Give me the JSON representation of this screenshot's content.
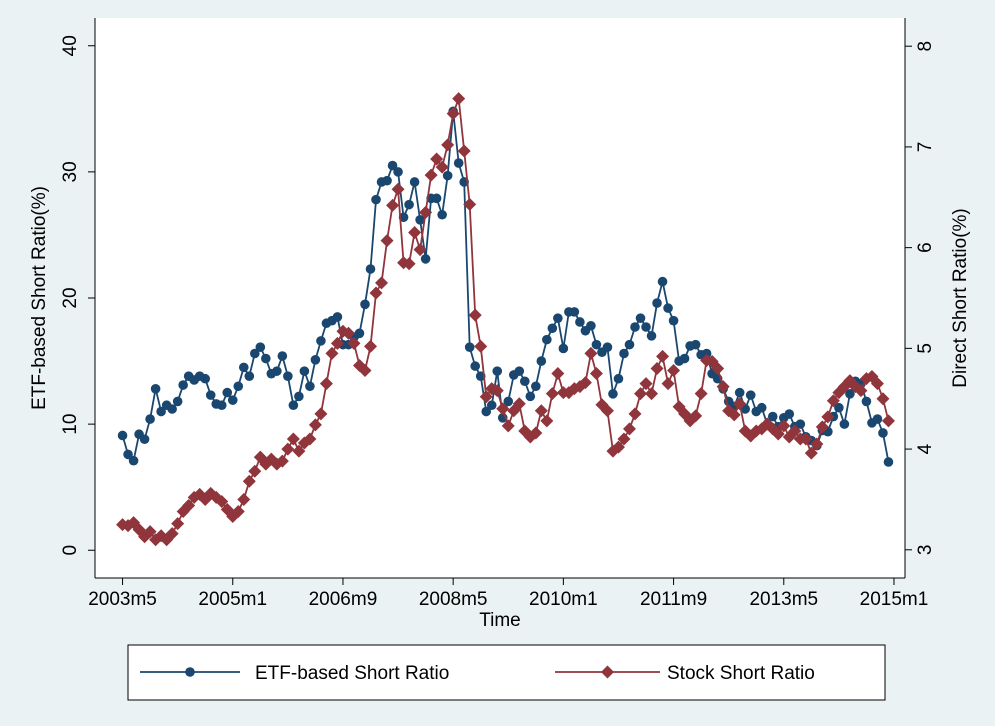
{
  "chart_data": {
    "type": "line",
    "xlabel": "Time",
    "ylabel": "ETF-based Short Ratio(%)",
    "y2label": "Direct Short Ratio(%)",
    "x": [
      "2003m5",
      "2003m6",
      "2003m7",
      "2003m8",
      "2003m9",
      "2003m10",
      "2003m11",
      "2003m12",
      "2004m1",
      "2004m2",
      "2004m3",
      "2004m4",
      "2004m5",
      "2004m6",
      "2004m7",
      "2004m8",
      "2004m9",
      "2004m10",
      "2004m11",
      "2004m12",
      "2005m1",
      "2005m2",
      "2005m3",
      "2005m4",
      "2005m5",
      "2005m6",
      "2005m7",
      "2005m8",
      "2005m9",
      "2005m10",
      "2005m11",
      "2005m12",
      "2006m1",
      "2006m2",
      "2006m3",
      "2006m4",
      "2006m5",
      "2006m6",
      "2006m7",
      "2006m8",
      "2006m9",
      "2006m10",
      "2006m11",
      "2006m12",
      "2007m1",
      "2007m2",
      "2007m3",
      "2007m4",
      "2007m5",
      "2007m6",
      "2007m7",
      "2007m8",
      "2007m9",
      "2007m10",
      "2007m11",
      "2007m12",
      "2008m1",
      "2008m2",
      "2008m3",
      "2008m4",
      "2008m5",
      "2008m6",
      "2008m7",
      "2008m8",
      "2008m9",
      "2008m10",
      "2008m11",
      "2008m12",
      "2009m1",
      "2009m2",
      "2009m3",
      "2009m4",
      "2009m5",
      "2009m6",
      "2009m7",
      "2009m8",
      "2009m9",
      "2009m10",
      "2009m11",
      "2009m12",
      "2010m1",
      "2010m2",
      "2010m3",
      "2010m4",
      "2010m5",
      "2010m6",
      "2010m7",
      "2010m8",
      "2010m9",
      "2010m10",
      "2010m11",
      "2010m12",
      "2011m1",
      "2011m2",
      "2011m3",
      "2011m4",
      "2011m5",
      "2011m6",
      "2011m7",
      "2011m8",
      "2011m9",
      "2011m10",
      "2011m11",
      "2011m12",
      "2012m1",
      "2012m2",
      "2012m3",
      "2012m4",
      "2012m5",
      "2012m6",
      "2012m7",
      "2012m8",
      "2012m9",
      "2012m10",
      "2012m11",
      "2012m12",
      "2013m1",
      "2013m2",
      "2013m3",
      "2013m4",
      "2013m5",
      "2013m6",
      "2013m7",
      "2013m8",
      "2013m9",
      "2013m10",
      "2013m11",
      "2013m12",
      "2014m1",
      "2014m2",
      "2014m3",
      "2014m4",
      "2014m5",
      "2014m6",
      "2014m7",
      "2014m8",
      "2014m9",
      "2014m10",
      "2014m11",
      "2014m12"
    ],
    "series": [
      {
        "name": "ETF-based Short Ratio",
        "color": "#1a476f",
        "marker": "circle",
        "values": [
          9.1,
          7.6,
          7.1,
          9.2,
          8.8,
          10.4,
          12.8,
          11.0,
          11.5,
          11.2,
          11.8,
          13.1,
          13.8,
          13.5,
          13.8,
          13.6,
          12.3,
          11.6,
          11.5,
          12.5,
          11.9,
          13.0,
          14.5,
          13.8,
          15.6,
          16.1,
          15.2,
          14.0,
          14.2,
          15.4,
          13.8,
          11.5,
          12.2,
          14.2,
          13.0,
          15.1,
          16.6,
          18.0,
          18.2,
          18.5,
          16.3,
          16.3,
          16.9,
          17.2,
          19.5,
          22.3,
          27.8,
          29.2,
          29.3,
          30.5,
          30.0,
          26.4,
          27.4,
          29.2,
          26.2,
          23.1,
          27.9,
          27.9,
          26.6,
          29.7,
          34.8,
          30.7,
          29.2,
          16.1,
          14.6,
          13.8,
          11.0,
          11.5,
          14.2,
          10.5,
          11.8,
          13.9,
          14.2,
          13.4,
          12.2,
          13.0,
          15.0,
          16.7,
          17.6,
          18.4,
          16.0,
          18.9,
          18.9,
          18.1,
          17.4,
          17.8,
          16.3,
          15.7,
          16.1,
          12.4,
          13.6,
          15.6,
          16.3,
          17.7,
          18.4,
          17.7,
          17.0,
          19.6,
          21.3,
          19.2,
          18.2,
          15.0,
          15.2,
          16.2,
          16.3,
          15.5,
          15.6,
          14.0,
          13.6,
          12.8,
          11.8,
          11.4,
          12.5,
          11.2,
          12.3,
          11.0,
          11.3,
          10.0,
          10.6,
          9.8,
          10.5,
          10.8,
          9.8,
          10.0,
          9.0,
          8.7,
          8.3,
          9.5,
          9.4,
          10.6,
          11.3,
          10.0,
          12.4,
          13.4,
          13.2,
          11.8,
          10.1,
          10.4,
          9.3,
          7.0
        ]
      },
      {
        "name": "Stock Short Ratio",
        "color": "#90353b",
        "marker": "diamond",
        "axis": "y2",
        "values": [
          3.25,
          3.24,
          3.27,
          3.2,
          3.13,
          3.18,
          3.1,
          3.14,
          3.1,
          3.16,
          3.26,
          3.38,
          3.44,
          3.52,
          3.55,
          3.5,
          3.56,
          3.52,
          3.48,
          3.4,
          3.33,
          3.38,
          3.5,
          3.68,
          3.78,
          3.92,
          3.85,
          3.9,
          3.85,
          3.88,
          4.0,
          4.1,
          3.98,
          4.06,
          4.1,
          4.24,
          4.35,
          4.65,
          4.95,
          5.05,
          5.17,
          5.15,
          5.05,
          4.83,
          4.78,
          5.02,
          5.55,
          5.65,
          6.07,
          6.42,
          6.58,
          5.85,
          5.84,
          6.15,
          5.98,
          6.35,
          6.72,
          6.88,
          6.8,
          7.02,
          7.33,
          7.48,
          6.96,
          6.43,
          5.33,
          5.02,
          4.52,
          4.6,
          4.58,
          4.4,
          4.23,
          4.38,
          4.45,
          4.18,
          4.12,
          4.16,
          4.38,
          4.28,
          4.55,
          4.75,
          4.56,
          4.56,
          4.6,
          4.62,
          4.66,
          4.95,
          4.75,
          4.44,
          4.38,
          3.98,
          4.02,
          4.1,
          4.2,
          4.35,
          4.55,
          4.65,
          4.55,
          4.8,
          4.92,
          4.65,
          4.78,
          4.42,
          4.35,
          4.28,
          4.33,
          4.55,
          4.88,
          4.87,
          4.8,
          4.62,
          4.38,
          4.34,
          4.45,
          4.18,
          4.13,
          4.18,
          4.2,
          4.25,
          4.2,
          4.15,
          4.23,
          4.12,
          4.18,
          4.1,
          4.1,
          3.96,
          4.05,
          4.22,
          4.32,
          4.48,
          4.56,
          4.62,
          4.68,
          4.62,
          4.58,
          4.7,
          4.72,
          4.65,
          4.5,
          4.28
        ]
      }
    ],
    "xlim": [
      "2002m12",
      "2015m3"
    ],
    "xticks": [
      "2003m5",
      "2005m1",
      "2006m9",
      "2008m5",
      "2010m1",
      "2011m9",
      "2013m5",
      "2015m1"
    ],
    "ylim": [
      -2.2,
      42.2
    ],
    "yticks": [
      0,
      10,
      20,
      30,
      40
    ],
    "y2lim": [
      2.72,
      8.28
    ],
    "y2ticks": [
      3,
      4,
      5,
      6,
      7,
      8
    ],
    "legend": "bottom"
  }
}
